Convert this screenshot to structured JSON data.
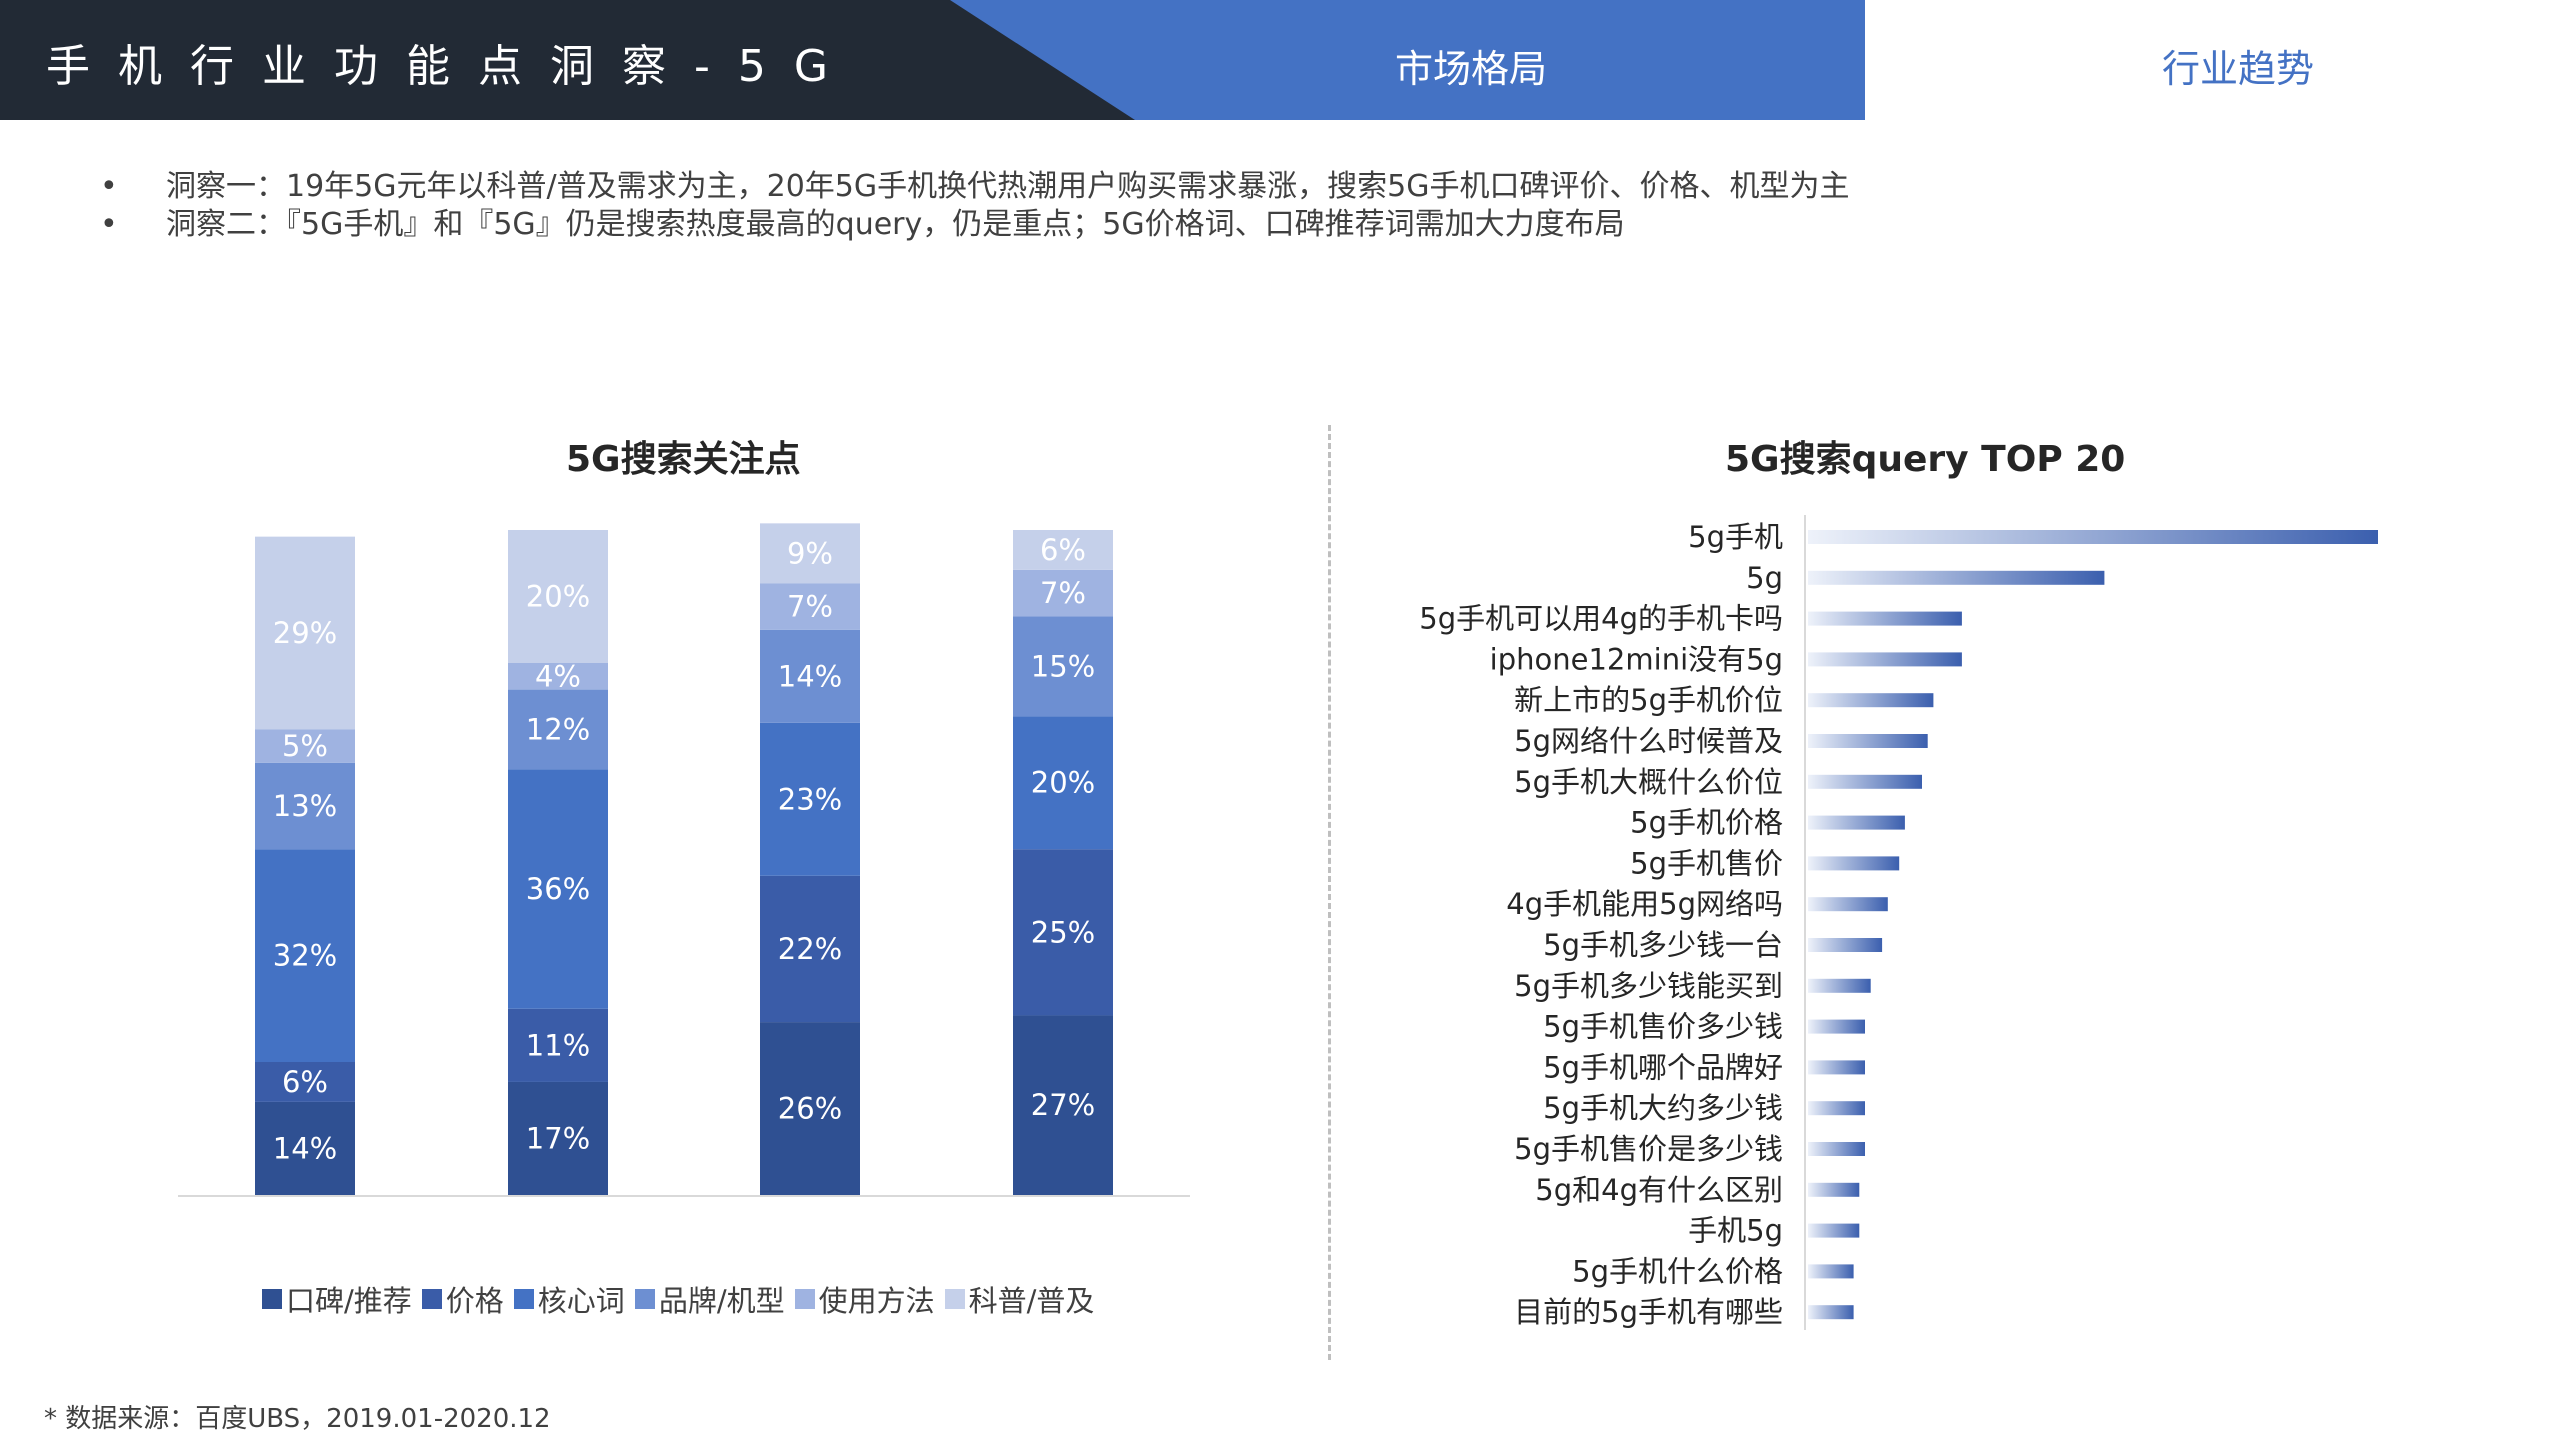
{
  "header": {
    "title": "手机行业功能点洞察-5G",
    "tab_market": "市场格局",
    "tab_trend": "行业趋势"
  },
  "insights": [
    "洞察一：19年5G元年以科普/普及需求为主，20年5G手机换代热潮用户购买需求暴涨，搜索5G手机口碑评价、价格、机型为主",
    "洞察二：『5G手机』和『5G』仍是搜索热度最高的query，仍是重点；5G价格词、口碑推荐词需加大力度布局"
  ],
  "bullet": "•",
  "source": "* 数据来源：百度UBS，2019.01-2020.12",
  "colors": {
    "header_dark": "#222a35",
    "header_blue": "#4472c4",
    "series": [
      "#2f5092",
      "#3a5ca8",
      "#4472c4",
      "#6d8fd2",
      "#9fb3e1",
      "#c5d0ea"
    ]
  },
  "chart_data": [
    {
      "type": "bar",
      "stacked": true,
      "title": "5G搜索关注点",
      "categories": [
        "",
        "",
        "",
        ""
      ],
      "series": [
        {
          "name": "口碑/推荐",
          "values": [
            14,
            17,
            26,
            27
          ]
        },
        {
          "name": "价格",
          "values": [
            6,
            11,
            22,
            25
          ]
        },
        {
          "name": "核心词",
          "values": [
            32,
            36,
            23,
            20
          ]
        },
        {
          "name": "品牌/机型",
          "values": [
            13,
            12,
            14,
            15
          ]
        },
        {
          "name": "使用方法",
          "values": [
            5,
            4,
            7,
            7
          ]
        },
        {
          "name": "科普/普及",
          "values": [
            29,
            20,
            9,
            6
          ]
        }
      ],
      "value_suffix": "%",
      "legend": "bottom"
    },
    {
      "type": "bar",
      "orientation": "horizontal",
      "title": "5G搜索query TOP 20",
      "categories": [
        "5g手机",
        "5g",
        "5g手机可以用4g的手机卡吗",
        "iphone12mini没有5g",
        "新上市的5g手机价位",
        "5g网络什么时候普及",
        "5g手机大概什么价位",
        "5g手机价格",
        "5g手机售价",
        "4g手机能用5g网络吗",
        "5g手机多少钱一台",
        "5g手机多少钱能买到",
        "5g手机售价多少钱",
        "5g手机哪个品牌好",
        "5g手机大约多少钱",
        "5g手机售价是多少钱",
        "5g和4g有什么区别",
        "手机5g",
        "5g手机什么价格",
        "目前的5g手机有哪些"
      ],
      "values": [
        100,
        52,
        27,
        27,
        22,
        21,
        20,
        17,
        16,
        14,
        13,
        11,
        10,
        10,
        10,
        10,
        9,
        9,
        8,
        8
      ]
    }
  ]
}
